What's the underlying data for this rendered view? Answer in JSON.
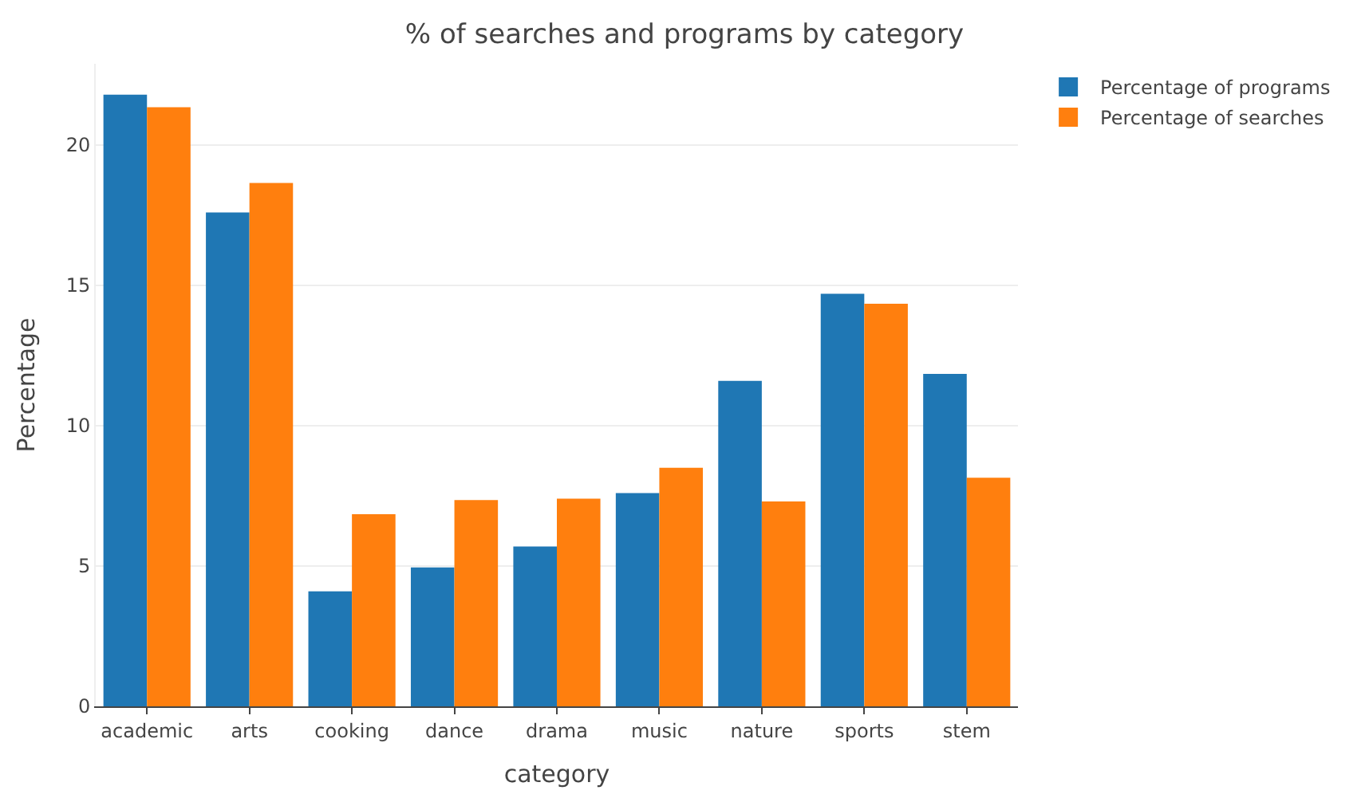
{
  "chart_data": {
    "type": "bar",
    "title": "% of searches and programs by category",
    "xlabel": "category",
    "ylabel": "Percentage",
    "categories": [
      "academic",
      "arts",
      "cooking",
      "dance",
      "drama",
      "music",
      "nature",
      "sports",
      "stem"
    ],
    "series": [
      {
        "name": "Percentage of programs",
        "color": "#1f77b4",
        "values": [
          21.8,
          17.6,
          4.1,
          4.95,
          5.7,
          7.6,
          11.6,
          14.7,
          11.85
        ]
      },
      {
        "name": "Percentage of searches",
        "color": "#ff7f0e",
        "values": [
          21.35,
          18.65,
          6.85,
          7.35,
          7.4,
          8.5,
          7.3,
          14.35,
          8.15
        ]
      }
    ],
    "ylim": [
      0,
      22.9
    ],
    "yticks": [
      0,
      5,
      10,
      15,
      20
    ],
    "grid": "y",
    "legend": "top right"
  }
}
